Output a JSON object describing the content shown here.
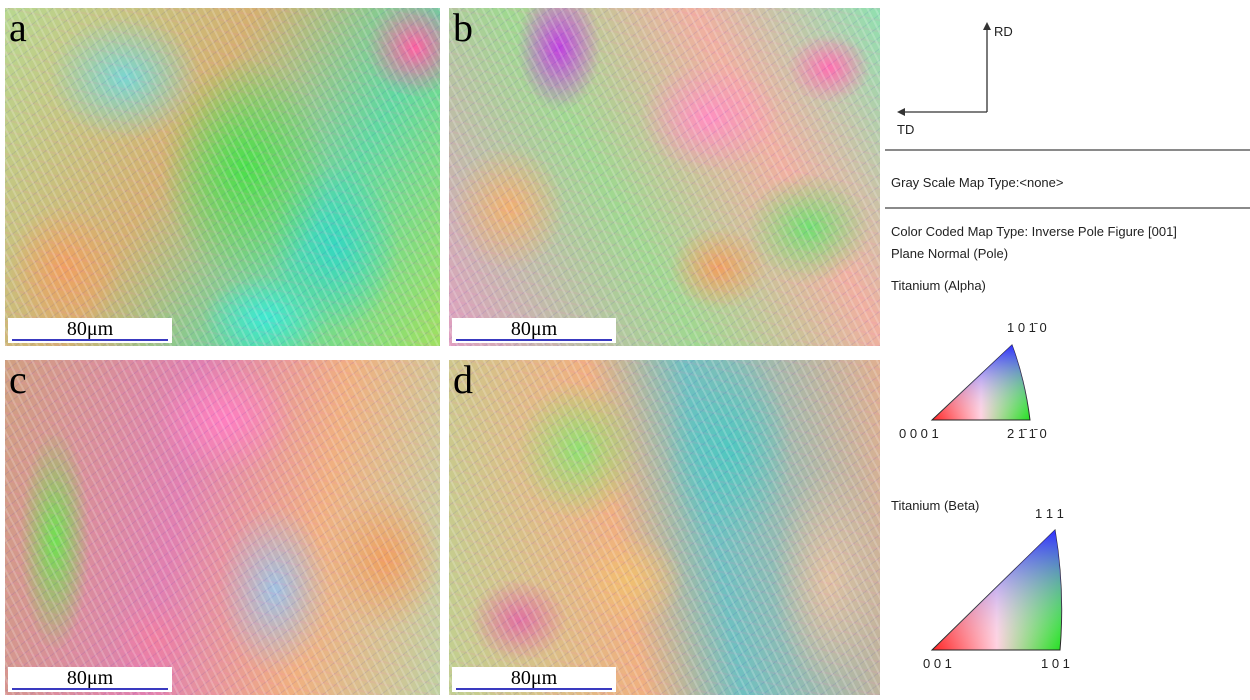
{
  "panels": [
    {
      "label": "a",
      "scale_bar": "80μm"
    },
    {
      "label": "b",
      "scale_bar": "80μm"
    },
    {
      "label": "c",
      "scale_bar": "80μm"
    },
    {
      "label": "d",
      "scale_bar": "80μm"
    }
  ],
  "legend": {
    "rd": "RD",
    "td": "TD",
    "gray_scale": "Gray Scale Map Type:<none>",
    "color_coded": "Color Coded Map Type: Inverse Pole Figure [001]",
    "plane_normal": "Plane Normal (Pole)",
    "alpha": {
      "title": "Titanium (Alpha)",
      "top": "1 0 1̄ 0",
      "left": "0 0 0 1",
      "right": "2 1̄ 1̄ 0"
    },
    "beta": {
      "title": "Titanium (Beta)",
      "top": "1 1 1",
      "left": "0 0 1",
      "right": "1 0 1"
    }
  }
}
